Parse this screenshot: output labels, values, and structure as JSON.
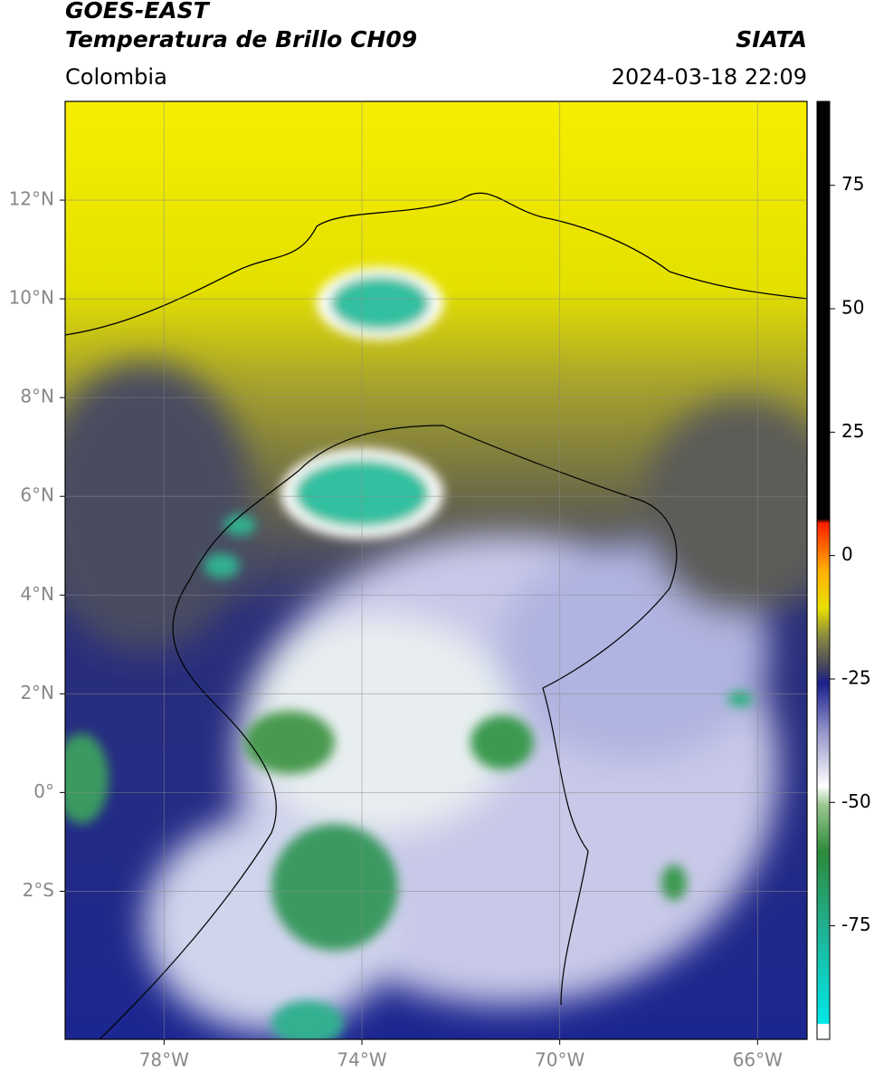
{
  "header": {
    "title": "GOES-EAST",
    "subtitle": "Temperatura de Brillo CH09",
    "region": "Colombia",
    "source": "SIATA",
    "datetime": "2024-03-18 22:09"
  },
  "map": {
    "lonlim": [
      -80,
      -65
    ],
    "latlim": [
      -5,
      14
    ],
    "lon_ticks": [
      {
        "value": -78,
        "label": "78°W"
      },
      {
        "value": -74,
        "label": "74°W"
      },
      {
        "value": -70,
        "label": "70°W"
      },
      {
        "value": -66,
        "label": "66°W"
      }
    ],
    "lat_ticks": [
      {
        "value": 12,
        "label": "12°N"
      },
      {
        "value": 10,
        "label": "10°N"
      },
      {
        "value": 8,
        "label": "8°N"
      },
      {
        "value": 6,
        "label": "6°N"
      },
      {
        "value": 4,
        "label": "4°N"
      },
      {
        "value": 2,
        "label": "2°N"
      },
      {
        "value": 0,
        "label": "0°"
      },
      {
        "value": -2,
        "label": "2°S"
      }
    ]
  },
  "colorbar": {
    "lim": [
      -98,
      92
    ],
    "ticks": [
      75,
      50,
      25,
      0,
      -25,
      -50,
      -75
    ]
  }
}
